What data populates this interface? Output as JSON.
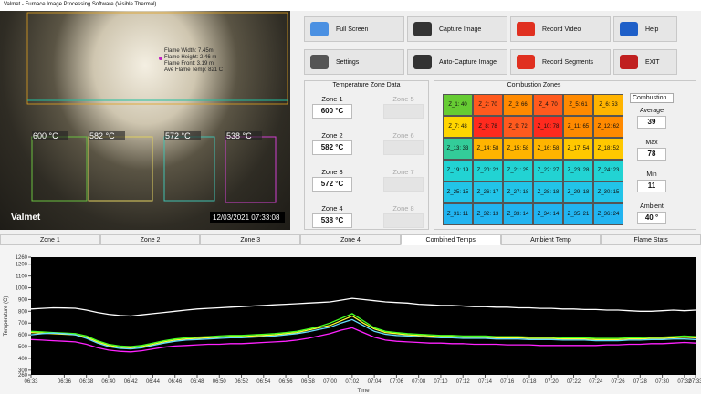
{
  "window": {
    "title": "Valmet - Furnace Image Processing Software (Visible Thermal)"
  },
  "camera": {
    "overlay": [
      "Flame Width: 7.45m",
      "Flame Height: 2.46 m",
      "Flame Front: 3.19 m",
      "Ave Flame Temp: 821 C"
    ],
    "zones": [
      "600 °C",
      "582 °C",
      "572 °C",
      "538 °C"
    ],
    "logo": "Valmet",
    "timestamp": "12/03/2021  07:33:08"
  },
  "buttons": [
    "Full Screen",
    "Capture Image",
    "Record Video",
    "Help",
    "Settings",
    "Auto-Capture Image",
    "Record Segments",
    "EXIT"
  ],
  "zone_data": {
    "title": "Temperature Zone Data",
    "zones": [
      {
        "label": "Zone 1",
        "value": "600 °C"
      },
      {
        "label": "Zone 2",
        "value": "582 °C"
      },
      {
        "label": "Zone 3",
        "value": "572 °C"
      },
      {
        "label": "Zone 4",
        "value": "538 °C"
      },
      {
        "label": "Zone 5"
      },
      {
        "label": "Zone 6"
      },
      {
        "label": "Zone 7"
      },
      {
        "label": "Zone 8"
      }
    ]
  },
  "combustion": {
    "title": "Combustion Zones",
    "dropdown": "Combustion",
    "cells": [
      {
        "label": "Z_1: 40",
        "color": "#66cc33"
      },
      {
        "label": "Z_2: 70",
        "color": "#ff5a1e"
      },
      {
        "label": "Z_3: 66",
        "color": "#ff8a00"
      },
      {
        "label": "Z_4: 70",
        "color": "#ff5a1e"
      },
      {
        "label": "Z_5: 61",
        "color": "#ff8a00"
      },
      {
        "label": "Z_6: 53",
        "color": "#ffb400"
      },
      {
        "label": "Z_7: 48",
        "color": "#ffd500"
      },
      {
        "label": "Z_8: 78",
        "color": "#ff2a1e"
      },
      {
        "label": "Z_9: 72",
        "color": "#ff5a1e"
      },
      {
        "label": "Z_10: 78",
        "color": "#ff2a1e"
      },
      {
        "label": "Z_11: 65",
        "color": "#ff8a00"
      },
      {
        "label": "Z_12: 62",
        "color": "#ff8a00"
      },
      {
        "label": "Z_13: 33",
        "color": "#33cc99"
      },
      {
        "label": "Z_14: 58",
        "color": "#ffb400"
      },
      {
        "label": "Z_15: 58",
        "color": "#ffb400"
      },
      {
        "label": "Z_16: 58",
        "color": "#ffb400"
      },
      {
        "label": "Z_17: 54",
        "color": "#ffc800"
      },
      {
        "label": "Z_18: 52",
        "color": "#ffc800"
      },
      {
        "label": "Z_19: 19",
        "color": "#22d3d3"
      },
      {
        "label": "Z_20: 22",
        "color": "#22d3d3"
      },
      {
        "label": "Z_21: 25",
        "color": "#22d3d3"
      },
      {
        "label": "Z_22: 27",
        "color": "#22d3d3"
      },
      {
        "label": "Z_23: 28",
        "color": "#22d3d3"
      },
      {
        "label": "Z_24: 23",
        "color": "#22d3d3"
      },
      {
        "label": "Z_25: 15",
        "color": "#22c4e8"
      },
      {
        "label": "Z_26: 17",
        "color": "#22c4e8"
      },
      {
        "label": "Z_27: 18",
        "color": "#22c4e8"
      },
      {
        "label": "Z_28: 18",
        "color": "#22c4e8"
      },
      {
        "label": "Z_29: 18",
        "color": "#22c4e8"
      },
      {
        "label": "Z_30: 15",
        "color": "#22c4e8"
      },
      {
        "label": "Z_31: 11",
        "color": "#22b4f0"
      },
      {
        "label": "Z_32: 13",
        "color": "#22b4f0"
      },
      {
        "label": "Z_33: 14",
        "color": "#22b4f0"
      },
      {
        "label": "Z_34: 14",
        "color": "#22b4f0"
      },
      {
        "label": "Z_35: 21",
        "color": "#22b4f0"
      },
      {
        "label": "Z_36: 24",
        "color": "#22b4f0"
      }
    ],
    "stats": [
      {
        "label": "Average",
        "value": "39"
      },
      {
        "label": "Max",
        "value": "78"
      },
      {
        "label": "Min",
        "value": "11"
      },
      {
        "label": "Ambient",
        "value": "40 °"
      }
    ]
  },
  "tabs": [
    "Zone 1",
    "Zone 2",
    "Zone 3",
    "Zone 4",
    "Combined Temps",
    "Ambient Temp",
    "Flame Stats"
  ],
  "active_tab": 4,
  "chart_data": {
    "type": "line",
    "xlabel": "Time",
    "ylabel": "Temperature (C)",
    "grid": false,
    "x": [
      "06:33",
      "06:34",
      "06:35",
      "06:36",
      "06:37",
      "06:38",
      "06:39",
      "06:40",
      "06:41",
      "06:42",
      "06:43",
      "06:44",
      "06:45",
      "06:46",
      "06:47",
      "06:48",
      "06:49",
      "06:50",
      "06:51",
      "06:52",
      "06:53",
      "06:54",
      "06:55",
      "06:56",
      "06:57",
      "06:58",
      "06:59",
      "07:00",
      "07:01",
      "07:02",
      "07:03",
      "07:04",
      "07:05",
      "07:06",
      "07:07",
      "07:08",
      "07:09",
      "07:10",
      "07:11",
      "07:12",
      "07:13",
      "07:14",
      "07:15",
      "07:16",
      "07:17",
      "07:18",
      "07:19",
      "07:20",
      "07:21",
      "07:22",
      "07:23",
      "07:24",
      "07:25",
      "07:26",
      "07:27",
      "07:28",
      "07:29",
      "07:30",
      "07:31",
      "07:32",
      "07:33"
    ],
    "xlim": [
      "06:33",
      "07:33"
    ],
    "xticks": [
      "06:33",
      "06:36",
      "06:38",
      "06:40",
      "06:42",
      "06:44",
      "06:46",
      "06:48",
      "06:50",
      "06:52",
      "06:54",
      "06:56",
      "06:58",
      "07:00",
      "07:02",
      "07:04",
      "07:06",
      "07:08",
      "07:10",
      "07:12",
      "07:14",
      "07:16",
      "07:18",
      "07:20",
      "07:22",
      "07:24",
      "07:26",
      "07:28",
      "07:30",
      "07:32",
      "07:33"
    ],
    "ylim": [
      260,
      1260
    ],
    "yticks": [
      1260,
      1200,
      1100,
      1000,
      900,
      800,
      700,
      600,
      500,
      400,
      300,
      260
    ],
    "series": [
      {
        "color": "#ffffff",
        "values": [
          820,
          825,
          830,
          828,
          826,
          810,
          790,
          775,
          765,
          760,
          770,
          780,
          790,
          800,
          810,
          820,
          825,
          830,
          835,
          840,
          845,
          850,
          855,
          860,
          865,
          870,
          875,
          880,
          895,
          910,
          900,
          890,
          880,
          875,
          870,
          860,
          855,
          850,
          850,
          845,
          840,
          840,
          835,
          835,
          830,
          830,
          825,
          825,
          820,
          820,
          815,
          815,
          810,
          810,
          805,
          800,
          800,
          805,
          810,
          805,
          810
        ]
      },
      {
        "color": "#ffff33",
        "values": [
          620,
          615,
          610,
          605,
          600,
          580,
          540,
          510,
          495,
          490,
          500,
          520,
          540,
          555,
          565,
          570,
          575,
          580,
          585,
          585,
          590,
          595,
          600,
          610,
          620,
          640,
          660,
          680,
          720,
          760,
          700,
          650,
          620,
          610,
          600,
          595,
          590,
          585,
          585,
          580,
          580,
          580,
          575,
          575,
          575,
          570,
          570,
          570,
          565,
          565,
          565,
          560,
          560,
          560,
          565,
          565,
          570,
          570,
          575,
          580,
          575
        ]
      },
      {
        "color": "#44ff22",
        "values": [
          630,
          625,
          620,
          615,
          610,
          590,
          550,
          520,
          505,
          500,
          510,
          530,
          550,
          565,
          575,
          580,
          585,
          590,
          595,
          595,
          600,
          605,
          610,
          620,
          630,
          650,
          670,
          700,
          740,
          780,
          720,
          660,
          630,
          620,
          610,
          605,
          600,
          595,
          595,
          590,
          590,
          590,
          585,
          585,
          585,
          580,
          580,
          580,
          575,
          575,
          575,
          570,
          570,
          570,
          575,
          575,
          580,
          580,
          585,
          590,
          585
        ]
      },
      {
        "color": "#66ddff",
        "values": [
          600,
          610,
          615,
          610,
          600,
          570,
          530,
          500,
          485,
          480,
          490,
          510,
          530,
          545,
          555,
          560,
          565,
          570,
          575,
          575,
          580,
          585,
          590,
          600,
          610,
          625,
          645,
          665,
          700,
          730,
          680,
          630,
          605,
          595,
          590,
          585,
          580,
          575,
          575,
          570,
          570,
          570,
          565,
          565,
          565,
          560,
          560,
          560,
          555,
          555,
          555,
          550,
          550,
          550,
          555,
          555,
          560,
          560,
          565,
          565,
          560
        ]
      },
      {
        "color": "#ff22ff",
        "values": [
          560,
          555,
          550,
          545,
          540,
          520,
          490,
          470,
          460,
          455,
          465,
          480,
          495,
          505,
          510,
          515,
          520,
          520,
          525,
          525,
          530,
          535,
          540,
          545,
          555,
          570,
          590,
          610,
          640,
          660,
          620,
          580,
          555,
          545,
          540,
          535,
          530,
          530,
          525,
          525,
          520,
          520,
          520,
          515,
          515,
          515,
          510,
          510,
          510,
          510,
          510,
          510,
          515,
          515,
          520,
          520,
          525,
          525,
          530,
          535,
          530
        ]
      }
    ]
  }
}
